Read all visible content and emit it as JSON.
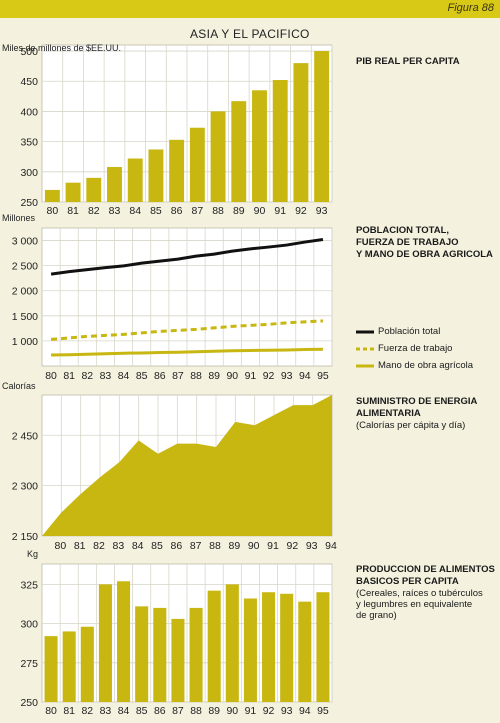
{
  "header": {
    "figure_label": "Figura 88",
    "page_title": "ASIA Y EL PACIFICO"
  },
  "colors": {
    "gold": "#c8b711",
    "header_bar": "#d9c917",
    "panel_bg": "#ffffff",
    "grid": "#d8d6c8",
    "black": "#111111"
  },
  "sections": {
    "gdp": {
      "title": "PIB REAL PER CAPITA"
    },
    "pop": {
      "title_lines": [
        "POBLACION TOTAL,",
        "FUERZA DE TRABAJO",
        "Y MANO DE OBRA AGRICOLA"
      ]
    },
    "energy": {
      "title_lines": [
        "SUMINISTRO DE ENERGIA",
        "ALIMENTARIA"
      ],
      "subtitle": "(Calorías per cápita y día)"
    },
    "food": {
      "title_lines": [
        "PRODUCCION DE ALIMENTOS",
        "BASICOS PER CAPITA"
      ],
      "subtitle_lines": [
        "(Cereales, raíces o tubérculos",
        "y legumbres en equivalente",
        "de grano)"
      ]
    }
  },
  "chart_data": [
    {
      "type": "bar",
      "title": "PIB REAL PER CAPITA",
      "ylabel": "Miles de millones de $EE.UU.",
      "categories": [
        "80",
        "81",
        "82",
        "83",
        "84",
        "85",
        "86",
        "87",
        "88",
        "89",
        "90",
        "91",
        "92",
        "93"
      ],
      "values": [
        270,
        282,
        290,
        308,
        322,
        337,
        353,
        373,
        400,
        417,
        435,
        452,
        480,
        500
      ],
      "ylim": [
        250,
        510
      ],
      "yticks": [
        250,
        300,
        350,
        400,
        450,
        500
      ],
      "ytick_labels": [
        "250",
        "300",
        "350",
        "400",
        "450",
        "500"
      ],
      "grid": true
    },
    {
      "type": "line",
      "title": "POBLACION TOTAL, FUERZA DE TRABAJO Y MANO DE OBRA AGRICOLA",
      "ylabel": "Millones",
      "categories": [
        "80",
        "81",
        "82",
        "83",
        "84",
        "85",
        "86",
        "87",
        "88",
        "89",
        "90",
        "91",
        "92",
        "93",
        "94",
        "95"
      ],
      "series": [
        {
          "name": "Población total",
          "style": "solid-black",
          "values": [
            2330,
            2380,
            2420,
            2460,
            2495,
            2550,
            2590,
            2630,
            2690,
            2730,
            2790,
            2835,
            2870,
            2910,
            2970,
            3020
          ]
        },
        {
          "name": "Fuerza de trabajo",
          "style": "dashed-gold",
          "values": [
            1030,
            1060,
            1090,
            1110,
            1130,
            1160,
            1190,
            1210,
            1230,
            1260,
            1290,
            1310,
            1330,
            1360,
            1380,
            1400
          ]
        },
        {
          "name": "Mano de obra agrícola",
          "style": "solid-gold",
          "values": [
            720,
            725,
            735,
            745,
            755,
            760,
            770,
            775,
            785,
            795,
            805,
            810,
            815,
            820,
            830,
            835
          ]
        }
      ],
      "ylim": [
        500,
        3250
      ],
      "yticks": [
        1000,
        1500,
        2000,
        2500,
        3000
      ],
      "ytick_labels": [
        "1 000",
        "1 500",
        "2 000",
        "2 500",
        "3 000"
      ],
      "grid": true,
      "legend_position": "right"
    },
    {
      "type": "area",
      "title": "SUMINISTRO DE ENERGIA ALIMENTARIA",
      "ylabel": "Calorías",
      "x": [
        "79",
        "80",
        "81",
        "82",
        "83",
        "84",
        "85",
        "86",
        "87",
        "88",
        "89",
        "90",
        "91",
        "92",
        "93",
        "94"
      ],
      "categories": [
        "80",
        "81",
        "82",
        "83",
        "84",
        "85",
        "86",
        "87",
        "88",
        "89",
        "90",
        "91",
        "92",
        "93",
        "94"
      ],
      "values": [
        2150,
        2220,
        2275,
        2325,
        2370,
        2435,
        2395,
        2425,
        2425,
        2415,
        2490,
        2480,
        2510,
        2540,
        2540,
        2570
      ],
      "ylim": [
        2150,
        2570
      ],
      "yticks": [
        2150,
        2300,
        2450
      ],
      "ytick_labels": [
        "2 150",
        "2 300",
        "2 450"
      ],
      "grid": true
    },
    {
      "type": "bar",
      "title": "PRODUCCION DE ALIMENTOS BASICOS PER CAPITA",
      "ylabel": "Kg",
      "categories": [
        "80",
        "81",
        "82",
        "83",
        "84",
        "85",
        "86",
        "87",
        "88",
        "89",
        "90",
        "91",
        "92",
        "93",
        "94",
        "95"
      ],
      "values": [
        292,
        295,
        298,
        325,
        327,
        311,
        310,
        303,
        310,
        321,
        325,
        316,
        320,
        319,
        314,
        320
      ],
      "ylim": [
        250,
        338
      ],
      "yticks": [
        250,
        275,
        300,
        325
      ],
      "ytick_labels": [
        "250",
        "275",
        "300",
        "325"
      ],
      "grid": true
    }
  ]
}
